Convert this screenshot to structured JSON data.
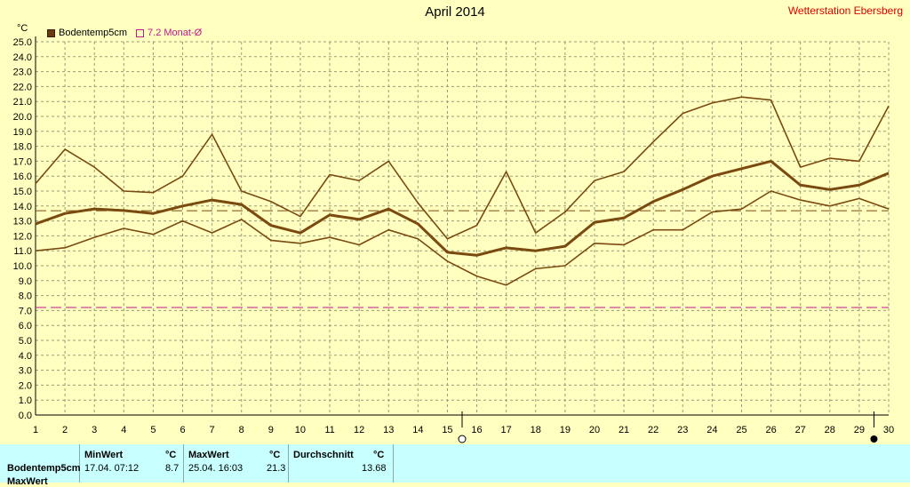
{
  "header": {
    "title": "April 2014",
    "station": "Wetterstation Ebersberg",
    "unit": "°C"
  },
  "legend": {
    "series_label": "Bodentemp5cm",
    "avg_label": "7.2 Monat-Ø"
  },
  "colors": {
    "series": "#7a4a10",
    "monthly_avg": "#c0198c",
    "period_avg": "#7a4a10",
    "background": "#ffffc0",
    "stats_background": "#c8ffff"
  },
  "chart_data": {
    "type": "line",
    "title": "April 2014",
    "x": [
      1,
      2,
      3,
      4,
      5,
      6,
      7,
      8,
      9,
      10,
      11,
      12,
      13,
      14,
      15,
      16,
      17,
      18,
      19,
      20,
      21,
      22,
      23,
      24,
      25,
      26,
      27,
      28,
      29,
      30
    ],
    "series": [
      {
        "name": "Bodentemp5cm",
        "role": "max",
        "values": [
          15.5,
          17.8,
          16.6,
          15.0,
          14.9,
          16.0,
          18.8,
          15.0,
          14.3,
          13.3,
          16.1,
          15.7,
          17.0,
          14.2,
          11.8,
          12.7,
          16.3,
          12.2,
          13.6,
          15.7,
          16.3,
          18.3,
          20.2,
          20.9,
          21.3,
          21.1,
          16.6,
          17.2,
          17.0,
          20.7
        ]
      },
      {
        "name": "Bodentemp5cm",
        "role": "mean",
        "values": [
          12.8,
          13.5,
          13.8,
          13.7,
          13.5,
          14.0,
          14.4,
          14.1,
          12.7,
          12.2,
          13.4,
          13.1,
          13.8,
          12.8,
          10.9,
          10.7,
          11.2,
          11.0,
          11.3,
          12.9,
          13.2,
          14.3,
          15.1,
          16.0,
          16.5,
          17.0,
          15.4,
          15.1,
          15.4,
          16.2
        ]
      },
      {
        "name": "Bodentemp5cm",
        "role": "min",
        "values": [
          11.0,
          11.2,
          11.9,
          12.5,
          12.1,
          13.0,
          12.2,
          13.1,
          11.7,
          11.5,
          11.9,
          11.4,
          12.4,
          11.8,
          10.3,
          9.3,
          8.7,
          9.8,
          10.0,
          11.5,
          11.4,
          12.4,
          12.4,
          13.6,
          13.8,
          15.0,
          14.4,
          14.0,
          14.5,
          13.8
        ]
      }
    ],
    "period_average": 13.68,
    "monthly_average": 7.2,
    "ylim": [
      0,
      25
    ],
    "ytick_step": 1,
    "grid": true,
    "legend_position": "top-left",
    "markers": [
      {
        "day": 15.5,
        "symbol": "first-quarter-moon"
      },
      {
        "day": 29.5,
        "symbol": "new-moon"
      }
    ]
  },
  "stats": {
    "headers": {
      "min": "MinWert",
      "max": "MaxWert",
      "avg": "Durchschnitt",
      "unit": "°C"
    },
    "rows": [
      {
        "label": "Bodentemp5cm",
        "min_time": "17.04.  07:12",
        "min_value": "8.7",
        "max_time": "25.04.  16:03",
        "max_value": "21.3",
        "avg_value": "13.68"
      },
      {
        "label": "MaxWert"
      }
    ]
  }
}
